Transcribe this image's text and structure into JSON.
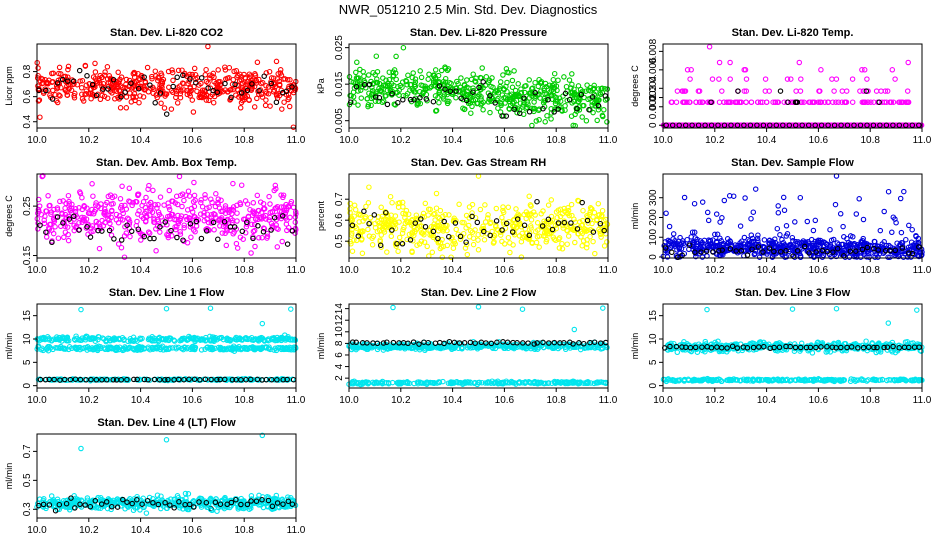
{
  "figure": {
    "title": "NWR_051210  2.5 Min. Std. Dev. Diagnostics"
  },
  "chart_data": [
    {
      "id": "co2",
      "type": "scatter",
      "title": "Stan. Dev. Li-820 CO2",
      "ylabel": "Licor ppm",
      "xlim": [
        10.0,
        11.0
      ],
      "ylim": [
        0.35,
        1.02
      ],
      "xticks": [
        10.0,
        10.2,
        10.4,
        10.6,
        10.8,
        11.0
      ],
      "yticks": [
        0.4,
        0.6,
        0.8
      ],
      "colors": {
        "main": "#ff0000",
        "highlight": "#000000"
      },
      "clusters": [
        {
          "center": 0.68,
          "spread": 0.07,
          "n": 500
        }
      ],
      "hl_clusters": [
        {
          "center": 0.66,
          "spread": 0.07,
          "n": 45
        }
      ],
      "outliers": [
        [
          10.66,
          1.0
        ],
        [
          10.99,
          0.35
        ]
      ]
    },
    {
      "id": "pressure",
      "type": "scatter",
      "title": "Stan. Dev. Li-820 Pressure",
      "ylabel": "kPa",
      "xlim": [
        10.0,
        11.0
      ],
      "ylim": [
        0.003,
        0.026
      ],
      "xticks": [
        10.0,
        10.2,
        10.4,
        10.6,
        10.8,
        11.0
      ],
      "yticks": [
        0.005,
        0.015,
        0.025
      ],
      "colors": {
        "main": "#00cc00",
        "highlight": "#000000"
      },
      "clusters": [
        {
          "center": 0.0125,
          "spread": 0.0028,
          "n": 550,
          "trend": -0.004
        }
      ],
      "hl_clusters": [
        {
          "center": 0.011,
          "spread": 0.0022,
          "n": 45,
          "trend": -0.003
        }
      ],
      "outliers": [
        [
          10.21,
          0.025
        ],
        [
          10.03,
          0.021
        ]
      ]
    },
    {
      "id": "temp",
      "type": "scatter",
      "title": "Stan. Dev. Li-820 Temp.",
      "ylabel": "degrees C",
      "xlim": [
        10.0,
        11.0
      ],
      "ylim": [
        -0.0003,
        0.0088
      ],
      "xticks": [
        10.0,
        10.2,
        10.4,
        10.6,
        10.8,
        11.0
      ],
      "yticks": [
        0.0,
        0.002,
        0.003,
        0.004,
        0.006,
        0.008
      ],
      "colors": {
        "main": "#ff00ff",
        "highlight": "#000000"
      },
      "levels": [
        0.0,
        0.0025,
        0.0037,
        0.005,
        0.006,
        0.0068
      ],
      "level_counts": [
        300,
        120,
        30,
        14,
        8,
        4
      ],
      "hl_levels": [
        0.0,
        0.0025,
        0.0037
      ],
      "hl_counts": [
        40,
        6,
        3
      ],
      "outliers": [
        [
          10.18,
          0.0085
        ]
      ]
    },
    {
      "id": "box",
      "type": "scatter",
      "title": "Stan. Dev. Amb. Box Temp.",
      "ylabel": "degrees C",
      "xlim": [
        10.0,
        11.0
      ],
      "ylim": [
        0.145,
        0.315
      ],
      "xticks": [
        10.0,
        10.2,
        10.4,
        10.6,
        10.8,
        11.0
      ],
      "yticks": [
        0.15,
        0.25
      ],
      "colors": {
        "main": "#ff00ff",
        "highlight": "#000000"
      },
      "clusters": [
        {
          "center": 0.23,
          "spread": 0.025,
          "n": 500
        }
      ],
      "hl_clusters": [
        {
          "center": 0.205,
          "spread": 0.015,
          "n": 45
        }
      ],
      "outliers": [
        [
          10.02,
          0.31
        ],
        [
          10.55,
          0.31
        ]
      ]
    },
    {
      "id": "rh",
      "type": "scatter",
      "title": "Stan. Dev. Gas Stream RH",
      "ylabel": "percent",
      "xlim": [
        10.0,
        11.0
      ],
      "ylim": [
        0.42,
        0.82
      ],
      "xticks": [
        10.0,
        10.2,
        10.4,
        10.6,
        10.8,
        11.0
      ],
      "yticks": [
        0.5,
        0.6,
        0.7
      ],
      "colors": {
        "main": "#ffff00",
        "highlight": "#000000"
      },
      "clusters": [
        {
          "center": 0.57,
          "spread": 0.055,
          "n": 500
        }
      ],
      "hl_clusters": [
        {
          "center": 0.56,
          "spread": 0.045,
          "n": 45
        }
      ],
      "outliers": [
        [
          10.5,
          0.81
        ]
      ]
    },
    {
      "id": "sample",
      "type": "scatter",
      "title": "Stan. Dev. Sample Flow",
      "ylabel": "ml/min",
      "xlim": [
        10.0,
        11.0
      ],
      "ylim": [
        -5,
        420
      ],
      "xticks": [
        10.0,
        10.2,
        10.4,
        10.6,
        10.8,
        11.0
      ],
      "yticks": [
        0,
        100,
        200,
        300
      ],
      "colors": {
        "main": "#0000dd",
        "highlight": "#000000"
      },
      "clusters": [
        {
          "center": 45,
          "spread": 25,
          "n": 550,
          "trend": -20
        },
        {
          "center": 180,
          "spread": 90,
          "n": 70
        }
      ],
      "hl_clusters": [
        {
          "center": 30,
          "spread": 12,
          "n": 45
        }
      ],
      "outliers": [
        [
          10.67,
          410
        ],
        [
          10.53,
          300
        ]
      ]
    },
    {
      "id": "line1",
      "type": "scatter",
      "title": "Stan. Dev. Line 1 Flow",
      "ylabel": "ml/min",
      "xlim": [
        10.0,
        11.0
      ],
      "ylim": [
        -0.5,
        17.5
      ],
      "xticks": [
        10.0,
        10.2,
        10.4,
        10.6,
        10.8,
        11.0
      ],
      "yticks": [
        0,
        5,
        10,
        15
      ],
      "colors": {
        "main": "#00e5ee",
        "highlight": "#000000"
      },
      "clusters": [
        {
          "center": 10.0,
          "spread": 0.25,
          "n": 260
        },
        {
          "center": 8.0,
          "spread": 0.2,
          "n": 260
        },
        {
          "center": 1.3,
          "spread": 0.08,
          "n": 200
        }
      ],
      "hl_clusters": [
        {
          "center": 1.3,
          "spread": 0.05,
          "n": 50
        }
      ],
      "outliers": [
        [
          10.17,
          16.3
        ],
        [
          10.5,
          16.5
        ],
        [
          10.67,
          16.6
        ],
        [
          10.98,
          16.4
        ],
        [
          10.87,
          13.3
        ]
      ]
    },
    {
      "id": "line2",
      "type": "scatter",
      "title": "Stan. Dev. Line 2 Flow",
      "ylabel": "ml/min",
      "xlim": [
        10.0,
        11.0
      ],
      "ylim": [
        0.3,
        14.8
      ],
      "xticks": [
        10.0,
        10.2,
        10.4,
        10.6,
        10.8,
        11.0
      ],
      "yticks": [
        2,
        4,
        6,
        8,
        10,
        12,
        14
      ],
      "colors": {
        "main": "#00e5ee",
        "highlight": "#000000"
      },
      "clusters": [
        {
          "center": 7.5,
          "spread": 0.25,
          "n": 420
        },
        {
          "center": 1.2,
          "spread": 0.1,
          "n": 250
        }
      ],
      "hl_clusters": [
        {
          "center": 8.1,
          "spread": 0.08,
          "n": 50
        }
      ],
      "outliers": [
        [
          10.17,
          14.2
        ],
        [
          10.5,
          14.3
        ],
        [
          10.67,
          13.9
        ],
        [
          10.98,
          14.1
        ],
        [
          10.87,
          10.4
        ]
      ]
    },
    {
      "id": "line3",
      "type": "scatter",
      "title": "Stan. Dev. Line 3 Flow",
      "ylabel": "ml/min",
      "xlim": [
        10.0,
        11.0
      ],
      "ylim": [
        -0.5,
        17.5
      ],
      "xticks": [
        10.0,
        10.2,
        10.4,
        10.6,
        10.8,
        11.0
      ],
      "yticks": [
        0,
        5,
        10,
        15
      ],
      "colors": {
        "main": "#00e5ee",
        "highlight": "#000000"
      },
      "clusters": [
        {
          "center": 8.3,
          "spread": 0.5,
          "n": 420
        },
        {
          "center": 1.2,
          "spread": 0.12,
          "n": 250
        }
      ],
      "hl_clusters": [
        {
          "center": 8.2,
          "spread": 0.1,
          "n": 50
        }
      ],
      "outliers": [
        [
          10.17,
          16.3
        ],
        [
          10.5,
          16.4
        ],
        [
          10.67,
          16.5
        ],
        [
          10.98,
          16.2
        ],
        [
          10.87,
          13.4
        ]
      ]
    },
    {
      "id": "line4",
      "type": "scatter",
      "title": "Stan. Dev. Line 4 (LT) Flow",
      "ylabel": "ml/min",
      "xlim": [
        10.0,
        11.0
      ],
      "ylim": [
        0.24,
        0.82
      ],
      "xticks": [
        10.0,
        10.2,
        10.4,
        10.6,
        10.8,
        11.0
      ],
      "yticks": [
        0.3,
        0.5,
        0.7
      ],
      "colors": {
        "main": "#00e5ee",
        "highlight": "#000000"
      },
      "clusters": [
        {
          "center": 0.34,
          "spread": 0.022,
          "n": 500
        }
      ],
      "hl_clusters": [
        {
          "center": 0.34,
          "spread": 0.015,
          "n": 50
        }
      ],
      "outliers": [
        [
          10.17,
          0.72
        ],
        [
          10.5,
          0.78
        ],
        [
          10.87,
          0.81
        ],
        [
          10.67,
          0.3
        ]
      ]
    }
  ]
}
